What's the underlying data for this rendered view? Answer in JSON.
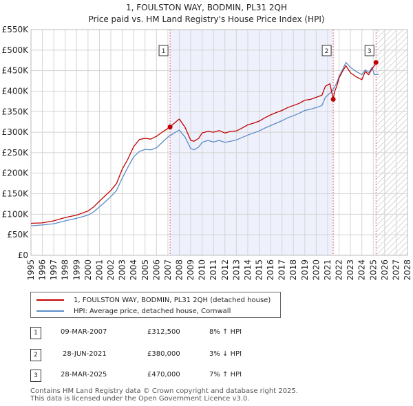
{
  "titles": {
    "line1": "1, FOULSTON WAY, BODMIN, PL31 2QH",
    "line2": "Price paid vs. HM Land Registry's House Price Index (HPI)"
  },
  "colors": {
    "property_line": "#c00000",
    "hpi_line": "#5b8bc9",
    "shade": "#eef1fb",
    "hatch": "#c8c8c8",
    "grid": "#d4d4d4",
    "marker_vline": "#e06070"
  },
  "chart_data": {
    "type": "line",
    "xlim": [
      1995,
      2028
    ],
    "ylim": [
      0,
      550000
    ],
    "y_ticks": [
      {
        "value": 0,
        "label": "£0"
      },
      {
        "value": 50000,
        "label": "£50K"
      },
      {
        "value": 100000,
        "label": "£100K"
      },
      {
        "value": 150000,
        "label": "£150K"
      },
      {
        "value": 200000,
        "label": "£200K"
      },
      {
        "value": 250000,
        "label": "£250K"
      },
      {
        "value": 300000,
        "label": "£300K"
      },
      {
        "value": 350000,
        "label": "£350K"
      },
      {
        "value": 400000,
        "label": "£400K"
      },
      {
        "value": 450000,
        "label": "£450K"
      },
      {
        "value": 500000,
        "label": "£500K"
      },
      {
        "value": 550000,
        "label": "£550K"
      }
    ],
    "x_ticks": [
      "1995",
      "1996",
      "1997",
      "1998",
      "1999",
      "2000",
      "2001",
      "2002",
      "2003",
      "2004",
      "2005",
      "2006",
      "2007",
      "2008",
      "2009",
      "2010",
      "2011",
      "2012",
      "2013",
      "2014",
      "2015",
      "2016",
      "2017",
      "2018",
      "2019",
      "2020",
      "2021",
      "2022",
      "2023",
      "2024",
      "2025",
      "2026",
      "2027",
      "2028"
    ],
    "shaded_region": [
      2007.19,
      2021.49
    ],
    "hatched_region_start": 2025.24,
    "series": [
      {
        "name": "1, FOULSTON WAY, BODMIN, PL31 2QH (detached house)",
        "x": [
          1995,
          1996,
          1997,
          1998,
          1999,
          2000,
          2000.5,
          2001,
          2001.5,
          2002,
          2002.5,
          2003,
          2003.5,
          2004,
          2004.5,
          2005,
          2005.5,
          2006,
          2006.5,
          2007.19,
          2007.6,
          2008,
          2008.5,
          2009,
          2009.3,
          2009.7,
          2010,
          2010.5,
          2011,
          2011.5,
          2012,
          2012.5,
          2013,
          2013.5,
          2014,
          2014.5,
          2015,
          2015.5,
          2016,
          2016.5,
          2017,
          2017.5,
          2018,
          2018.5,
          2019,
          2019.5,
          2020,
          2020.5,
          2020.8,
          2021.2,
          2021.49,
          2021.6,
          2021.8,
          2022,
          2022.3,
          2022.6,
          2023,
          2023.5,
          2024,
          2024.3,
          2024.6,
          2024.9,
          2025.1,
          2025.24
        ],
        "values": [
          78000,
          79000,
          84000,
          92000,
          98000,
          108000,
          118000,
          132000,
          145000,
          158000,
          175000,
          210000,
          235000,
          265000,
          282000,
          285000,
          283000,
          290000,
          300000,
          312500,
          323000,
          332000,
          312000,
          280000,
          278000,
          285000,
          298000,
          302000,
          300000,
          304000,
          298000,
          302000,
          303000,
          310000,
          318000,
          322000,
          327000,
          335000,
          342000,
          348000,
          353000,
          360000,
          365000,
          370000,
          378000,
          380000,
          385000,
          390000,
          412000,
          418000,
          380000,
          398000,
          412000,
          432000,
          448000,
          462000,
          445000,
          435000,
          428000,
          448000,
          440000,
          455000,
          462000,
          470000
        ]
      },
      {
        "name": "HPI: Average price, detached house, Cornwall",
        "x": [
          1995,
          1996,
          1997,
          1998,
          1999,
          2000,
          2000.5,
          2001,
          2001.5,
          2002,
          2002.5,
          2003,
          2003.5,
          2004,
          2004.5,
          2005,
          2005.5,
          2006,
          2006.5,
          2007,
          2007.6,
          2008,
          2008.5,
          2009,
          2009.3,
          2009.7,
          2010,
          2010.5,
          2011,
          2011.5,
          2012,
          2012.5,
          2013,
          2013.5,
          2014,
          2014.5,
          2015,
          2015.5,
          2016,
          2016.5,
          2017,
          2017.5,
          2018,
          2018.5,
          2019,
          2019.5,
          2020,
          2020.5,
          2020.8,
          2021.2,
          2021.5,
          2021.8,
          2022,
          2022.3,
          2022.6,
          2023,
          2023.5,
          2024,
          2024.3,
          2024.6,
          2024.9,
          2025.1,
          2025.5
        ],
        "values": [
          72000,
          74000,
          77000,
          84000,
          90000,
          98000,
          106000,
          118000,
          130000,
          143000,
          158000,
          188000,
          215000,
          240000,
          253000,
          258000,
          257000,
          262000,
          275000,
          288000,
          299000,
          305000,
          288000,
          260000,
          257000,
          264000,
          275000,
          280000,
          276000,
          280000,
          275000,
          278000,
          281000,
          287000,
          293000,
          298000,
          303000,
          310000,
          316000,
          322000,
          328000,
          335000,
          340000,
          346000,
          353000,
          356000,
          360000,
          365000,
          385000,
          395000,
          405000,
          420000,
          435000,
          452000,
          470000,
          458000,
          448000,
          440000,
          452000,
          445000,
          458000,
          440000,
          441000
        ]
      }
    ],
    "sales": [
      {
        "label": "1",
        "x": 2007.19,
        "value": 312500
      },
      {
        "label": "2",
        "x": 2021.49,
        "value": 380000
      },
      {
        "label": "3",
        "x": 2025.24,
        "value": 470000
      }
    ]
  },
  "legend": {
    "property": "1, FOULSTON WAY, BODMIN, PL31 2QH (detached house)",
    "hpi": "HPI: Average price, detached house, Cornwall"
  },
  "transactions": [
    {
      "num": "1",
      "date": "09-MAR-2007",
      "price": "£312,500",
      "hpi": "8% ↑ HPI"
    },
    {
      "num": "2",
      "date": "28-JUN-2021",
      "price": "£380,000",
      "hpi": "3% ↓ HPI"
    },
    {
      "num": "3",
      "date": "28-MAR-2025",
      "price": "£470,000",
      "hpi": "7% ↑ HPI"
    }
  ],
  "footer": {
    "line1": "Contains HM Land Registry data © Crown copyright and database right 2025.",
    "line2": "This data is licensed under the Open Government Licence v3.0."
  }
}
